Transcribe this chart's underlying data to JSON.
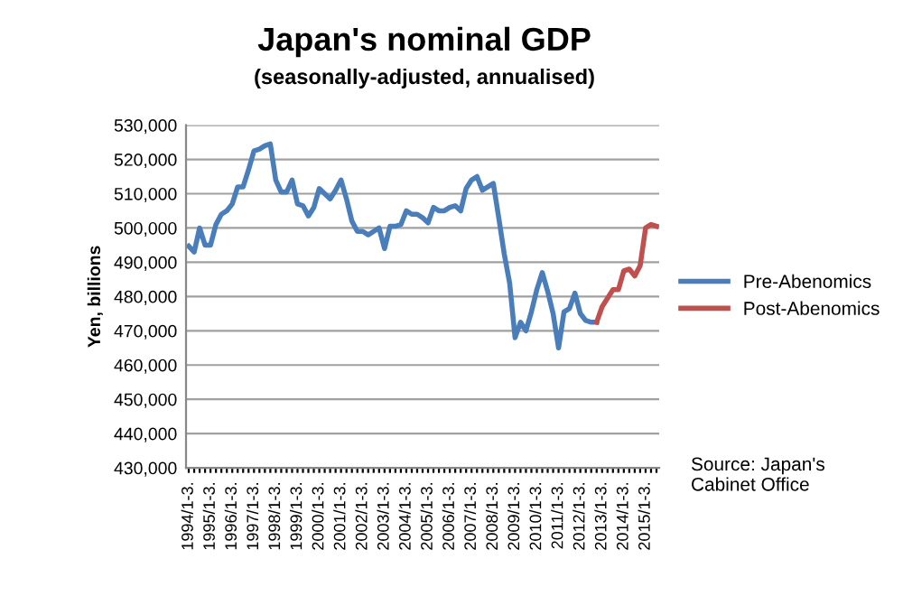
{
  "chart_data": {
    "type": "line",
    "title": "Japan's nominal GDP",
    "subtitle": "(seasonally-adjusted, annualised)",
    "ylabel": "Yen, billions",
    "categories": [
      "1994/1-3.",
      null,
      null,
      null,
      "1995/1-3.",
      null,
      null,
      null,
      "1996/1-3.",
      null,
      null,
      null,
      "1997/1-3.",
      null,
      null,
      null,
      "1998/1-3.",
      null,
      null,
      null,
      "1999/1-3.",
      null,
      null,
      null,
      "2000/1-3.",
      null,
      null,
      null,
      "2001/1-3.",
      null,
      null,
      null,
      "2002/1-3.",
      null,
      null,
      null,
      "2003/1-3.",
      null,
      null,
      null,
      "2004/1-3.",
      null,
      null,
      null,
      "2005/1-3.",
      null,
      null,
      null,
      "2006/1-3.",
      null,
      null,
      null,
      "2007/1-3.",
      null,
      null,
      null,
      "2008/1-3.",
      null,
      null,
      null,
      "2009/1-3.",
      null,
      null,
      null,
      "2010/1-3.",
      null,
      null,
      null,
      "2011/1-3.",
      null,
      null,
      null,
      "2012/1-3.",
      null,
      null,
      null,
      "2013/1-3.",
      null,
      null,
      null,
      "2014/1-3.",
      null,
      null,
      null,
      "2015/1-3.",
      null,
      null
    ],
    "series": [
      {
        "name": "Pre-Abenomics",
        "color": "#4a7ebb",
        "values": [
          494700,
          493000,
          500000,
          495000,
          495000,
          501000,
          504000,
          505000,
          507000,
          512000,
          512000,
          517000,
          522500,
          523000,
          524000,
          524500,
          514000,
          510500,
          510500,
          514000,
          507000,
          506500,
          503500,
          506000,
          511500,
          510000,
          508500,
          511000,
          514000,
          508500,
          502000,
          499000,
          499000,
          498000,
          499000,
          500000,
          494000,
          500500,
          500500,
          501000,
          505000,
          504000,
          504000,
          503000,
          501500,
          506000,
          505000,
          505000,
          506000,
          506500,
          505000,
          511500,
          514000,
          515000,
          511000,
          512000,
          513000,
          503000,
          492500,
          484000,
          468000,
          472500,
          470000,
          475500,
          482000,
          487000,
          481500,
          475000,
          465000,
          475500,
          476500,
          481000,
          475000,
          473000,
          472500,
          472500,
          null,
          null,
          null,
          null,
          null,
          null,
          null,
          null,
          null,
          null,
          null
        ]
      },
      {
        "name": "Post-Abenomics",
        "color": "#c0504d",
        "values": [
          null,
          null,
          null,
          null,
          null,
          null,
          null,
          null,
          null,
          null,
          null,
          null,
          null,
          null,
          null,
          null,
          null,
          null,
          null,
          null,
          null,
          null,
          null,
          null,
          null,
          null,
          null,
          null,
          null,
          null,
          null,
          null,
          null,
          null,
          null,
          null,
          null,
          null,
          null,
          null,
          null,
          null,
          null,
          null,
          null,
          null,
          null,
          null,
          null,
          null,
          null,
          null,
          null,
          null,
          null,
          null,
          null,
          null,
          null,
          null,
          null,
          null,
          null,
          null,
          null,
          null,
          null,
          null,
          null,
          null,
          null,
          null,
          null,
          null,
          null,
          472500,
          477000,
          479500,
          482000,
          482000,
          487500,
          488000,
          486000,
          489000,
          500000,
          501000,
          500500
        ]
      }
    ],
    "ylim": [
      430000,
      530000
    ],
    "yticks": [
      {
        "value": 430000,
        "label": "430,000"
      },
      {
        "value": 440000,
        "label": "440,000"
      },
      {
        "value": 450000,
        "label": "450,000"
      },
      {
        "value": 460000,
        "label": "460,000"
      },
      {
        "value": 470000,
        "label": "470,000"
      },
      {
        "value": 480000,
        "label": "480,000"
      },
      {
        "value": 490000,
        "label": "490,000"
      },
      {
        "value": 500000,
        "label": "500,000"
      },
      {
        "value": 510000,
        "label": "510,000"
      },
      {
        "value": 520000,
        "label": "520,000"
      },
      {
        "value": 530000,
        "label": "530,000"
      }
    ],
    "grid": "y",
    "legend": "right",
    "marker": "none",
    "line_style": "solid",
    "annotations": [
      "Source: Japan's\nCabinet Office"
    ]
  }
}
